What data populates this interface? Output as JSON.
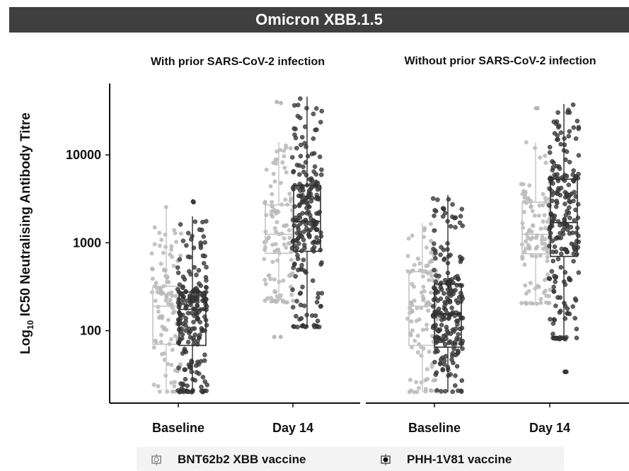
{
  "banner": "Omicron XBB.1.5",
  "chart_data": {
    "type": "box plot with jittered points",
    "title": "Omicron XBB.1.5",
    "ylabel_prefix": "Log",
    "ylabel_sub": "10",
    "ylabel_rest": " IC50 Neutralising  Antibody Titre",
    "yscale": "log",
    "ylim": [
      15,
      65000
    ],
    "yticks": [
      100,
      1000,
      10000
    ],
    "ytick_labels": [
      "100",
      "1000",
      "10000"
    ],
    "panels": [
      {
        "title": "With prior SARS-CoV-2 infection",
        "categories": [
          "Baseline",
          "Day 14"
        ]
      },
      {
        "title": "Without prior SARS-CoV-2 infection",
        "categories": [
          "Baseline",
          "Day 14"
        ]
      }
    ],
    "series": [
      {
        "name": "BNT62b2  XBB vaccine",
        "color": "#b8b8b8"
      },
      {
        "name": "PHH-1V81 vaccine",
        "color": "#3a3a3a"
      }
    ],
    "boxes": [
      {
        "panel": 0,
        "category": "Baseline",
        "series": 0,
        "whisker_low": 20,
        "q1": 70,
        "median": 190,
        "q3": 320,
        "whisker_high": 2600,
        "n": 110,
        "outliers": []
      },
      {
        "panel": 0,
        "category": "Baseline",
        "series": 1,
        "whisker_low": 20,
        "q1": 68,
        "median": 175,
        "q3": 275,
        "whisker_high": 2000,
        "n": 220,
        "outliers": [
          2900,
          2950
        ]
      },
      {
        "panel": 0,
        "category": "Day 14",
        "series": 0,
        "whisker_low": 210,
        "q1": 760,
        "median": 1250,
        "q3": 2700,
        "whisker_high": 14000,
        "n": 110,
        "outliers": [
          85,
          85,
          39000,
          40000
        ]
      },
      {
        "panel": 0,
        "category": "Day 14",
        "series": 1,
        "whisker_low": 110,
        "q1": 800,
        "median": 1750,
        "q3": 4500,
        "whisker_high": 46000,
        "n": 220,
        "outliers": []
      },
      {
        "panel": 1,
        "category": "Baseline",
        "series": 0,
        "whisker_low": 20,
        "q1": 68,
        "median": 190,
        "q3": 470,
        "whisker_high": 1700,
        "n": 110,
        "outliers": []
      },
      {
        "panel": 1,
        "category": "Baseline",
        "series": 1,
        "whisker_low": 20,
        "q1": 65,
        "median": 155,
        "q3": 340,
        "whisker_high": 3500,
        "n": 220,
        "outliers": []
      },
      {
        "panel": 1,
        "category": "Day 14",
        "series": 0,
        "whisker_low": 200,
        "q1": 750,
        "median": 1250,
        "q3": 2900,
        "whisker_high": 14000,
        "n": 110,
        "outliers": [
          34000,
          34000
        ]
      },
      {
        "panel": 1,
        "category": "Day 14",
        "series": 1,
        "whisker_low": 80,
        "q1": 700,
        "median": 1700,
        "q3": 5300,
        "whisker_high": 38000,
        "n": 220,
        "outliers": [
          34,
          34
        ]
      }
    ],
    "legend_position": "bottom",
    "grid": false
  },
  "legend": {
    "items": [
      {
        "label": "BNT62b2  XBB vaccine",
        "icon": "hollow-box-icon"
      },
      {
        "label": "PHH-1V81 vaccine",
        "icon": "filled-box-icon"
      }
    ]
  }
}
